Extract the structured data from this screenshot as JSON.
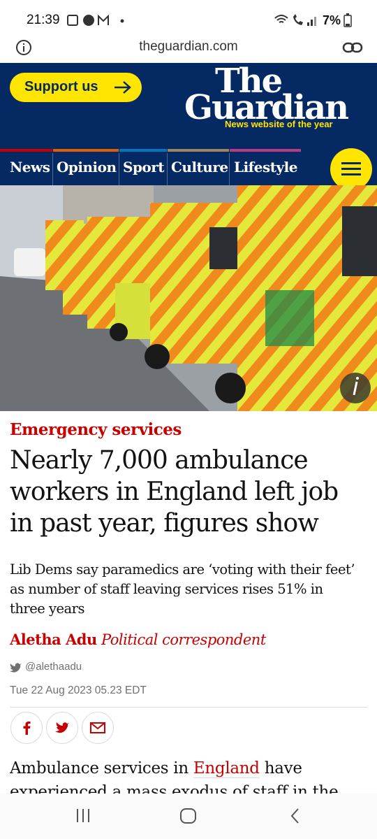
{
  "status_bar": {
    "time": "21:39",
    "battery": "7%"
  },
  "address_bar": {
    "url": "theguardian.com"
  },
  "header": {
    "support": "Support us",
    "logo_the": "The",
    "logo_guardian": "Guardian",
    "tagline": "News website of the year"
  },
  "nav": {
    "items": [
      "News",
      "Opinion",
      "Sport",
      "Culture",
      "Lifestyle"
    ]
  },
  "article": {
    "kicker": "Emergency services",
    "headline": "Nearly 7,000 ambulance workers in England left job in past year, figures show",
    "standfirst": "Lib Dems say paramedics are ‘voting with their feet’ as number of staff leaving services rises 51% in three years",
    "author": "Aletha Adu",
    "role": "Political correspondent",
    "twitter": "@alethaadu",
    "date": "Tue 22 Aug 2023 05.23 EDT",
    "body": {
      "before": "Ambulance services in ",
      "link": "England",
      "after": " have experienced a mass exodus of staff in the"
    }
  }
}
